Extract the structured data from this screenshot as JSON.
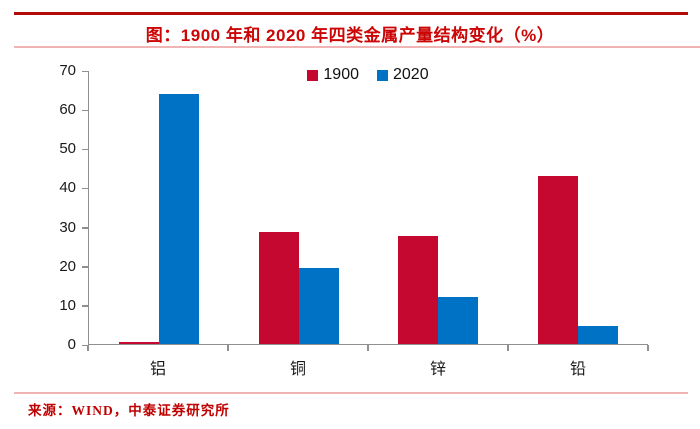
{
  "title": "图：1900 年和 2020 年四类金属产量结构变化（%）",
  "source": "来源：WIND，中泰证券研究所",
  "colors": {
    "title_red": "#cc0505",
    "rule_dark_red": "#b50a0a",
    "rule_light_red": "#f0b4b4",
    "axis_gray": "#8f8f8f",
    "series_1900": "#c5082f",
    "series_2020": "#0072c6"
  },
  "chart_data": {
    "type": "bar",
    "title": "图：1900 年和 2020 年四类金属产量结构变化（%）",
    "categories": [
      "铝",
      "铜",
      "锌",
      "铅"
    ],
    "series": [
      {
        "name": "1900",
        "color": "#c5082f",
        "values": [
          0.5,
          28.5,
          27.5,
          43
        ]
      },
      {
        "name": "2020",
        "color": "#0072c6",
        "values": [
          64,
          19.5,
          12,
          4.5
        ]
      }
    ],
    "xlabel": "",
    "ylabel": "",
    "ylim": [
      0,
      70
    ],
    "yticks": [
      0,
      10,
      20,
      30,
      40,
      50,
      60,
      70
    ],
    "grid": false,
    "legend_position": "top-center"
  }
}
